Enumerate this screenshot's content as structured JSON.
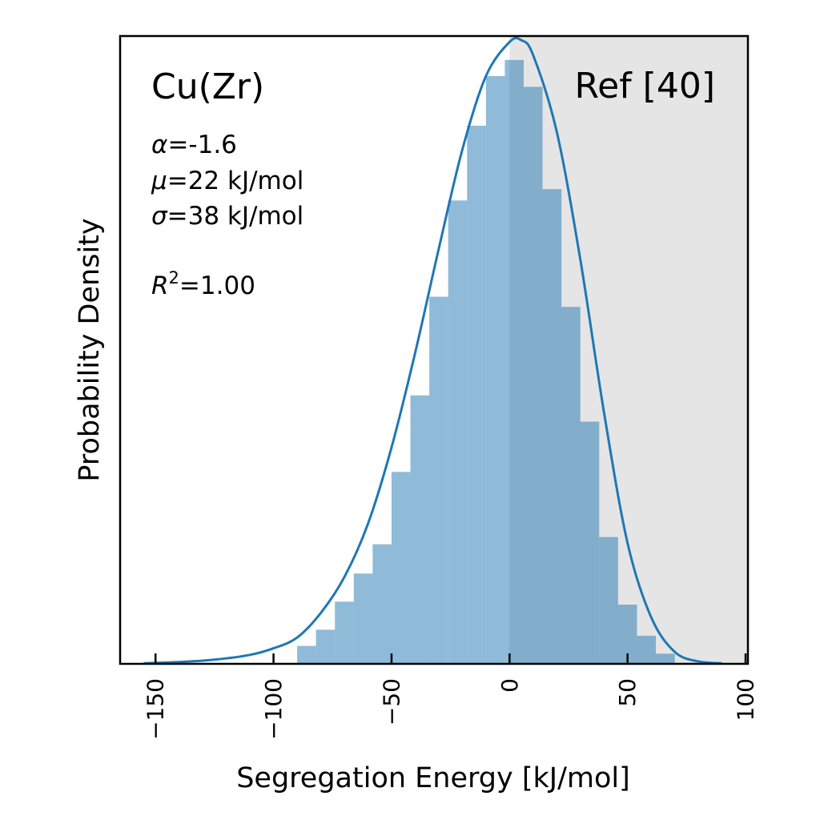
{
  "chart_data": {
    "type": "bar",
    "title": "",
    "xlabel": "Segregation Energy [kJ/mol]",
    "ylabel": "Probability Density",
    "xlim": [
      -165,
      101
    ],
    "ylim": [
      0,
      0.0105
    ],
    "xticks": [
      -150,
      -100,
      -50,
      0,
      50,
      100
    ],
    "xtick_labels": [
      "−150",
      "−100",
      "−50",
      "0",
      "50",
      "100"
    ],
    "grid": false,
    "shaded_region": {
      "x_start": 0,
      "x_end": 101,
      "label": "Ref [40]",
      "color": "#e5e5e5"
    },
    "histogram": {
      "bin_edges": [
        -90,
        -82,
        -74,
        -66,
        -58,
        -50,
        -42,
        -34,
        -26,
        -18,
        -10,
        -2,
        6,
        14,
        22,
        30,
        38,
        46,
        54,
        62,
        70
      ],
      "values": [
        0.0003,
        0.00057,
        0.00104,
        0.00151,
        0.002,
        0.00321,
        0.00449,
        0.00614,
        0.00775,
        0.009,
        0.00983,
        0.0101,
        0.00965,
        0.00794,
        0.00597,
        0.00405,
        0.00212,
        0.00099,
        0.00047,
        0.00017
      ],
      "color": "#8eb9d9"
    },
    "fit_curve": {
      "x": [
        -155,
        -140,
        -125,
        -110,
        -100,
        -90,
        -80,
        -70,
        -60,
        -50,
        -40,
        -30,
        -20,
        -10,
        0,
        5,
        10,
        20,
        30,
        40,
        50,
        60,
        70,
        80,
        90
      ],
      "y": [
        1e-05,
        3e-05,
        7e-05,
        0.00015,
        0.00026,
        0.00044,
        0.00085,
        0.00145,
        0.00234,
        0.00362,
        0.0052,
        0.00694,
        0.0086,
        0.00983,
        0.0104,
        0.01043,
        0.01018,
        0.0089,
        0.00676,
        0.00421,
        0.00202,
        0.00078,
        0.0002,
        4e-05,
        1e-05
      ],
      "color": "#1f77b4"
    },
    "annotations": {
      "system": "Cu(Zr)",
      "alpha": {
        "symbol": "α",
        "text": "=-1.6"
      },
      "mu": {
        "symbol": "μ",
        "text": "=22 kJ/mol"
      },
      "sigma": {
        "symbol": "σ",
        "text": "=38 kJ/mol"
      },
      "r2": {
        "symbol": "R",
        "sup": "2",
        "text": "=1.00"
      }
    }
  }
}
